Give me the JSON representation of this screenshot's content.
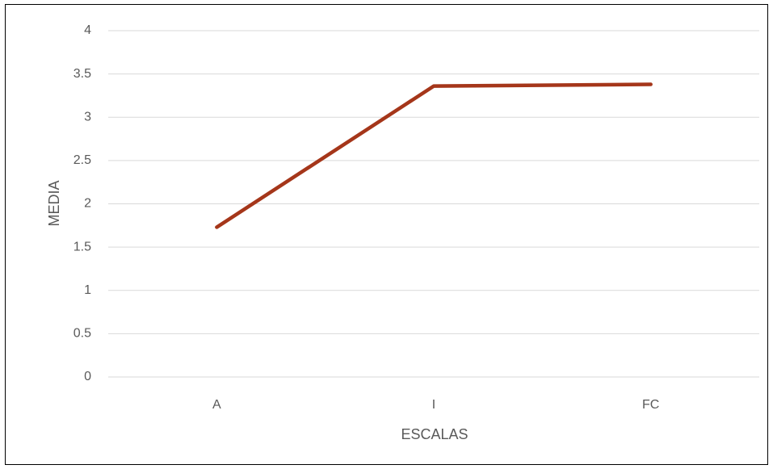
{
  "chart_data": {
    "type": "line",
    "title": "",
    "xlabel": "ESCALAS",
    "ylabel": "MEDIA",
    "categories": [
      "A",
      "I",
      "FC"
    ],
    "series": [
      {
        "values": [
          1.73,
          3.36,
          3.38
        ],
        "color": "#A5361A"
      }
    ],
    "ylim": [
      0,
      4
    ],
    "yticks": [
      "0",
      "0.5",
      "1",
      "1.5",
      "2",
      "2.5",
      "3",
      "3.5",
      "4"
    ],
    "grid": true,
    "legend": "none",
    "colors": {
      "grid": "#D9D9D9",
      "text": "#595959",
      "border": "#000000"
    }
  }
}
